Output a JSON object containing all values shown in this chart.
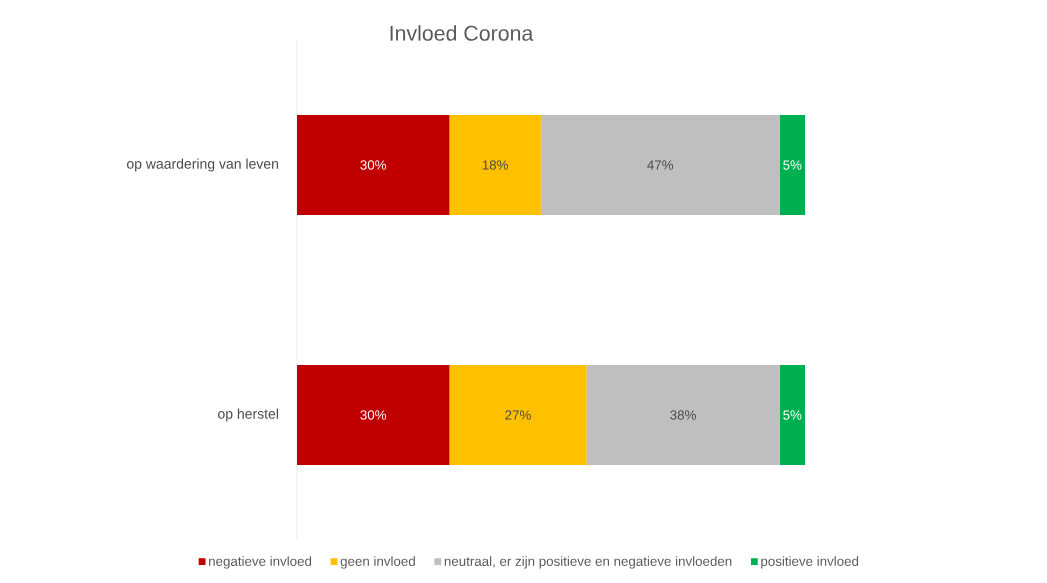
{
  "chart_data": {
    "type": "bar",
    "orientation": "horizontal",
    "stacked": true,
    "title": "Invloed Corona",
    "categories": [
      "op waardering van leven",
      "op herstel"
    ],
    "series": [
      {
        "name": "negatieve invloed",
        "color": "#c00000",
        "values": [
          30,
          30
        ],
        "value_labels": [
          "30%",
          "30%"
        ]
      },
      {
        "name": "geen invloed",
        "color": "#ffc000",
        "values": [
          18,
          27
        ],
        "value_labels": [
          "18%",
          "27%"
        ]
      },
      {
        "name": "neutraal, er zijn positieve en negatieve invloeden",
        "color": "#bfbfbf",
        "values": [
          47,
          38
        ],
        "value_labels": [
          "47%",
          "38%"
        ]
      },
      {
        "name": "positieve invloed",
        "color": "#00b050",
        "values": [
          5,
          5
        ],
        "value_labels": [
          "5%",
          "5%"
        ]
      }
    ],
    "legend": "bottom"
  }
}
